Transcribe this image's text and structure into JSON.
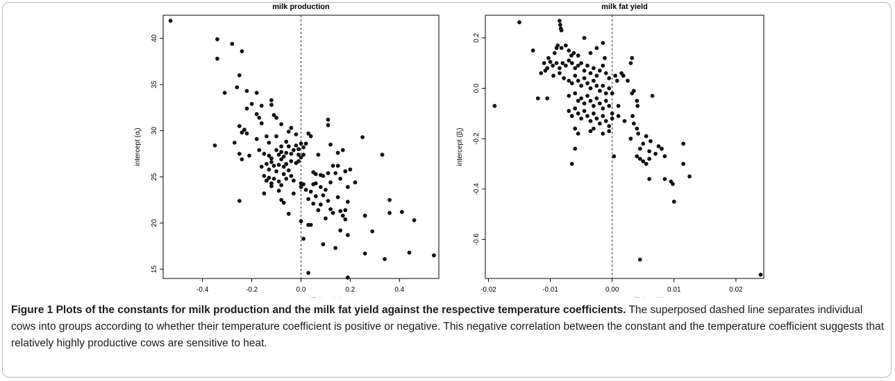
{
  "chart_data": [
    {
      "type": "scatter",
      "title": "milk production",
      "xlabel": "temperature coefficient (a",
      "xlabel_sub": "i",
      "ylabel": "intercept (α",
      "ylabel_sub": "i",
      "xlim": [
        -0.56,
        0.56
      ],
      "ylim": [
        14.0,
        42.5
      ],
      "xticks": [
        "-0.4",
        "-0.2",
        "0.0",
        "0.2",
        "0.4"
      ],
      "xtick_values": [
        -0.4,
        -0.2,
        0.0,
        0.2,
        0.4
      ],
      "yticks": [
        "15",
        "20",
        "25",
        "30",
        "35",
        "40"
      ],
      "ytick_values": [
        15,
        20,
        25,
        30,
        35,
        40
      ],
      "reference_line": {
        "x": 0,
        "style": "dashed"
      },
      "points": [
        [
          -0.53,
          41.9
        ],
        [
          -0.34,
          39.9
        ],
        [
          -0.34,
          37.8
        ],
        [
          -0.28,
          39.4
        ],
        [
          -0.24,
          38.6
        ],
        [
          -0.25,
          36.0
        ],
        [
          -0.26,
          34.7
        ],
        [
          -0.31,
          34.1
        ],
        [
          -0.22,
          34.3
        ],
        [
          -0.2,
          32.9
        ],
        [
          -0.22,
          32.4
        ],
        [
          -0.18,
          34.1
        ],
        [
          -0.16,
          32.7
        ],
        [
          -0.18,
          31.8
        ],
        [
          -0.17,
          31.4
        ],
        [
          -0.16,
          30.8
        ],
        [
          -0.12,
          33.3
        ],
        [
          -0.12,
          32.8
        ],
        [
          -0.11,
          31.7
        ],
        [
          -0.1,
          31.4
        ],
        [
          -0.08,
          30.7
        ],
        [
          -0.05,
          29.9
        ],
        [
          -0.04,
          30.3
        ],
        [
          -0.02,
          29.6
        ],
        [
          0.03,
          29.7
        ],
        [
          -0.25,
          30.5
        ],
        [
          -0.24,
          29.8
        ],
        [
          -0.22,
          29.7
        ],
        [
          -0.23,
          30.1
        ],
        [
          -0.27,
          28.7
        ],
        [
          -0.18,
          29.1
        ],
        [
          -0.14,
          29.4
        ],
        [
          -0.13,
          28.7
        ],
        [
          -0.1,
          29.4
        ],
        [
          -0.08,
          28.3
        ],
        [
          -0.06,
          28.8
        ],
        [
          -0.05,
          28.3
        ],
        [
          -0.02,
          28.4
        ],
        [
          -0.01,
          28.0
        ],
        [
          0.0,
          28.6
        ],
        [
          0.01,
          28.2
        ],
        [
          0.02,
          28.6
        ],
        [
          -0.35,
          28.4
        ],
        [
          -0.25,
          27.5
        ],
        [
          -0.24,
          26.9
        ],
        [
          -0.21,
          27.3
        ],
        [
          -0.17,
          27.9
        ],
        [
          -0.15,
          27.5
        ],
        [
          -0.13,
          27.3
        ],
        [
          -0.12,
          27.0
        ],
        [
          -0.1,
          27.9
        ],
        [
          -0.09,
          27.4
        ],
        [
          -0.08,
          27.7
        ],
        [
          -0.07,
          27.2
        ],
        [
          -0.06,
          27.6
        ],
        [
          -0.04,
          27.5
        ],
        [
          -0.03,
          27.9
        ],
        [
          -0.01,
          27.4
        ],
        [
          0.0,
          27.1
        ],
        [
          0.01,
          27.4
        ],
        [
          -0.16,
          26.1
        ],
        [
          -0.14,
          26.4
        ],
        [
          -0.13,
          25.8
        ],
        [
          -0.12,
          26.6
        ],
        [
          -0.11,
          26.2
        ],
        [
          -0.1,
          25.6
        ],
        [
          -0.09,
          26.3
        ],
        [
          -0.08,
          26.9
        ],
        [
          -0.07,
          26.1
        ],
        [
          -0.06,
          26.4
        ],
        [
          -0.05,
          25.7
        ],
        [
          -0.04,
          26.7
        ],
        [
          -0.02,
          26.5
        ],
        [
          -0.01,
          26.7
        ],
        [
          -0.15,
          25.1
        ],
        [
          -0.14,
          24.6
        ],
        [
          -0.13,
          24.9
        ],
        [
          -0.12,
          24.3
        ],
        [
          -0.11,
          24.8
        ],
        [
          -0.09,
          24.5
        ],
        [
          -0.08,
          24.1
        ],
        [
          -0.07,
          25.3
        ],
        [
          -0.06,
          24.8
        ],
        [
          -0.04,
          25.1
        ],
        [
          -0.03,
          24.6
        ],
        [
          -0.25,
          22.4
        ],
        [
          -0.15,
          23.2
        ],
        [
          -0.12,
          24.0
        ],
        [
          -0.09,
          23.5
        ],
        [
          -0.08,
          22.5
        ],
        [
          -0.07,
          22.2
        ],
        [
          -0.05,
          21.0
        ],
        [
          -0.03,
          23.2
        ],
        [
          0.0,
          23.9
        ],
        [
          0.0,
          24.3
        ],
        [
          0.01,
          24.2
        ],
        [
          0.02,
          23.6
        ],
        [
          0.05,
          25.5
        ],
        [
          0.06,
          25.3
        ],
        [
          0.06,
          24.3
        ],
        [
          0.08,
          25.2
        ],
        [
          0.08,
          23.9
        ],
        [
          0.09,
          25.1
        ],
        [
          0.11,
          25.4
        ],
        [
          0.12,
          24.4
        ],
        [
          0.13,
          26.2
        ],
        [
          0.14,
          25.4
        ],
        [
          0.15,
          26.2
        ],
        [
          0.16,
          24.8
        ],
        [
          0.18,
          25.6
        ],
        [
          0.19,
          23.9
        ],
        [
          0.2,
          25.8
        ],
        [
          0.22,
          24.4
        ],
        [
          0.05,
          24.2
        ],
        [
          0.04,
          23.4
        ],
        [
          0.03,
          22.6
        ],
        [
          0.05,
          22.1
        ],
        [
          0.06,
          22.9
        ],
        [
          0.07,
          21.4
        ],
        [
          0.08,
          22.0
        ],
        [
          0.09,
          23.0
        ],
        [
          0.1,
          23.6
        ],
        [
          0.11,
          22.4
        ],
        [
          0.12,
          21.5
        ],
        [
          0.13,
          21.1
        ],
        [
          0.15,
          22.8
        ],
        [
          0.16,
          21.3
        ],
        [
          0.17,
          20.8
        ],
        [
          0.18,
          20.4
        ],
        [
          0.19,
          22.3
        ],
        [
          0.18,
          21.4
        ],
        [
          0.16,
          19.2
        ],
        [
          0.04,
          29.4
        ],
        [
          0.07,
          27.4
        ],
        [
          0.11,
          31.2
        ],
        [
          0.11,
          30.6
        ],
        [
          0.12,
          28.5
        ],
        [
          0.15,
          27.6
        ],
        [
          0.17,
          27.9
        ],
        [
          0.25,
          29.3
        ],
        [
          0.33,
          27.4
        ],
        [
          0.0,
          20.2
        ],
        [
          0.01,
          18.3
        ],
        [
          0.03,
          19.8
        ],
        [
          0.04,
          19.8
        ],
        [
          0.09,
          17.7
        ],
        [
          0.1,
          20.5
        ],
        [
          0.14,
          17.3
        ],
        [
          0.19,
          18.7
        ],
        [
          0.29,
          19.1
        ],
        [
          0.26,
          20.8
        ],
        [
          0.34,
          16.1
        ],
        [
          0.26,
          16.7
        ],
        [
          0.44,
          16.8
        ],
        [
          0.54,
          16.5
        ],
        [
          0.36,
          22.5
        ],
        [
          0.36,
          21.1
        ],
        [
          0.41,
          21.2
        ],
        [
          0.46,
          20.3
        ],
        [
          0.03,
          14.6
        ],
        [
          0.19,
          14.1
        ]
      ]
    },
    {
      "type": "scatter",
      "title": "milk fat yield",
      "xlabel": "temperature coefficient (b",
      "xlabel_sub": "i",
      "ylabel": "intercept (β",
      "ylabel_sub": "i",
      "xlim": [
        -0.0205,
        0.0245
      ],
      "ylim": [
        -0.755,
        0.29
      ],
      "xticks": [
        "-0.02",
        "-0.01",
        "0.00",
        "0.01",
        "0.02"
      ],
      "xtick_values": [
        -0.02,
        -0.01,
        0.0,
        0.01,
        0.02
      ],
      "yticks": [
        "-0.6",
        "-0.4",
        "-0.2",
        "0.0",
        "0.2"
      ],
      "ytick_values": [
        -0.6,
        -0.4,
        -0.2,
        0.0,
        0.2
      ],
      "reference_line": {
        "x": 0,
        "style": "dashed"
      },
      "points": [
        [
          -0.015,
          0.262
        ],
        [
          -0.0085,
          0.268
        ],
        [
          -0.0084,
          0.252
        ],
        [
          -0.0083,
          0.237
        ],
        [
          -0.0082,
          0.23
        ],
        [
          -0.0128,
          0.15
        ],
        [
          -0.0103,
          0.12
        ],
        [
          -0.0093,
          0.14
        ],
        [
          -0.009,
          0.16
        ],
        [
          -0.0088,
          0.17
        ],
        [
          -0.0082,
          0.16
        ],
        [
          -0.0075,
          0.17
        ],
        [
          -0.007,
          0.15
        ],
        [
          -0.0066,
          0.13
        ],
        [
          -0.0062,
          0.14
        ],
        [
          -0.0055,
          0.13
        ],
        [
          -0.0045,
          0.2
        ],
        [
          -0.0035,
          0.14
        ],
        [
          -0.0025,
          0.16
        ],
        [
          -0.0015,
          0.18
        ],
        [
          -0.0012,
          0.12
        ],
        [
          -0.011,
          0.1
        ],
        [
          -0.0105,
          0.08
        ],
        [
          -0.01,
          0.105
        ],
        [
          -0.0096,
          0.09
        ],
        [
          -0.009,
          0.1
        ],
        [
          -0.0085,
          0.08
        ],
        [
          -0.008,
          0.1
        ],
        [
          -0.0075,
          0.09
        ],
        [
          -0.007,
          0.11
        ],
        [
          -0.0065,
          0.1
        ],
        [
          -0.006,
          0.08
        ],
        [
          -0.0055,
          0.09
        ],
        [
          -0.005,
          0.1
        ],
        [
          -0.0045,
          0.07
        ],
        [
          -0.004,
          0.09
        ],
        [
          -0.0035,
          0.06
        ],
        [
          -0.003,
          0.08
        ],
        [
          -0.0025,
          0.05
        ],
        [
          -0.002,
          0.07
        ],
        [
          -0.0015,
          0.09
        ],
        [
          -0.001,
          0.06
        ],
        [
          -0.0005,
          0.04
        ],
        [
          0.0005,
          0.05
        ],
        [
          0.0015,
          0.06
        ],
        [
          0.003,
          0.1
        ],
        [
          0.0032,
          0.12
        ],
        [
          0.0018,
          0.05
        ],
        [
          -0.0115,
          0.06
        ],
        [
          -0.0108,
          0.07
        ],
        [
          -0.0095,
          0.05
        ],
        [
          -0.0085,
          0.06
        ],
        [
          -0.0078,
          0.04
        ],
        [
          -0.007,
          0.03
        ],
        [
          -0.0065,
          0.02
        ],
        [
          -0.006,
          0.05
        ],
        [
          -0.0055,
          0.03
        ],
        [
          -0.005,
          0.01
        ],
        [
          -0.0045,
          0.04
        ],
        [
          -0.004,
          0.02
        ],
        [
          -0.0035,
          0.0
        ],
        [
          -0.003,
          0.03
        ],
        [
          -0.0025,
          0.01
        ],
        [
          -0.002,
          -0.01
        ],
        [
          -0.0015,
          0.01
        ],
        [
          -0.001,
          -0.02
        ],
        [
          -0.0005,
          0.0
        ],
        [
          0.0,
          -0.02
        ],
        [
          0.0008,
          0.03
        ],
        [
          0.0025,
          0.03
        ],
        [
          -0.019,
          -0.07
        ],
        [
          -0.012,
          -0.04
        ],
        [
          -0.0105,
          -0.04
        ],
        [
          -0.007,
          -0.03
        ],
        [
          -0.006,
          -0.02
        ],
        [
          -0.0055,
          -0.05
        ],
        [
          -0.005,
          -0.04
        ],
        [
          -0.0045,
          -0.06
        ],
        [
          -0.004,
          -0.03
        ],
        [
          -0.0035,
          -0.05
        ],
        [
          -0.003,
          -0.07
        ],
        [
          -0.0025,
          -0.04
        ],
        [
          -0.002,
          -0.06
        ],
        [
          -0.0015,
          -0.08
        ],
        [
          -0.001,
          -0.05
        ],
        [
          -0.0005,
          -0.07
        ],
        [
          0.0,
          -0.1
        ],
        [
          0.001,
          -0.07
        ],
        [
          0.0032,
          -0.02
        ],
        [
          0.0035,
          -0.01
        ],
        [
          0.004,
          -0.05
        ],
        [
          0.0041,
          -0.07
        ],
        [
          -0.007,
          -0.09
        ],
        [
          -0.0065,
          -0.11
        ],
        [
          -0.006,
          -0.08
        ],
        [
          -0.0055,
          -0.1
        ],
        [
          -0.005,
          -0.12
        ],
        [
          -0.0045,
          -0.09
        ],
        [
          -0.004,
          -0.11
        ],
        [
          -0.0035,
          -0.13
        ],
        [
          -0.003,
          -0.1
        ],
        [
          -0.0025,
          -0.12
        ],
        [
          -0.002,
          -0.14
        ],
        [
          -0.0015,
          -0.11
        ],
        [
          -0.001,
          -0.13
        ],
        [
          -0.0005,
          -0.15
        ],
        [
          0.0,
          -0.12
        ],
        [
          0.001,
          -0.11
        ],
        [
          0.002,
          -0.13
        ],
        [
          0.0033,
          -0.11
        ],
        [
          -0.006,
          -0.16
        ],
        [
          -0.0055,
          -0.18
        ],
        [
          -0.0035,
          -0.17
        ],
        [
          -0.003,
          -0.16
        ],
        [
          -0.0015,
          -0.18
        ],
        [
          -0.0005,
          -0.17
        ],
        [
          0.0035,
          -0.14
        ],
        [
          0.004,
          -0.16
        ],
        [
          0.0042,
          -0.18
        ],
        [
          0.003,
          -0.2
        ],
        [
          0.0055,
          -0.19
        ],
        [
          0.0062,
          -0.21
        ],
        [
          0.005,
          -0.22
        ],
        [
          0.0045,
          -0.24
        ],
        [
          0.0075,
          -0.23
        ],
        [
          0.006,
          -0.25
        ],
        [
          0.008,
          -0.24
        ],
        [
          0.007,
          -0.26
        ],
        [
          0.0085,
          -0.27
        ],
        [
          0.0115,
          -0.22
        ],
        [
          0.004,
          -0.27
        ],
        [
          0.0045,
          -0.28
        ],
        [
          0.005,
          -0.29
        ],
        [
          0.0055,
          -0.3
        ],
        [
          0.006,
          -0.28
        ],
        [
          0.0115,
          -0.3
        ],
        [
          0.0125,
          -0.35
        ],
        [
          0.0095,
          -0.37
        ],
        [
          0.0085,
          -0.36
        ],
        [
          0.0098,
          -0.38
        ],
        [
          0.006,
          -0.36
        ],
        [
          -0.0065,
          -0.3
        ],
        [
          0.0003,
          -0.27
        ],
        [
          0.01,
          -0.45
        ],
        [
          0.0065,
          -0.03
        ],
        [
          -0.006,
          -0.24
        ],
        [
          0.0045,
          -0.68
        ],
        [
          0.024,
          -0.74
        ]
      ]
    }
  ],
  "caption": {
    "lead": "Figure 1 Plots of the constants for milk production and the milk fat yield against the respective temperature coefficients.",
    "body": " The superposed dashed line separates individual cows into groups according to whether their temperature coefficient is positive or negative. This negative correlation between the constant and the temperature coefficient suggests that relatively highly productive cows are sensitive to heat."
  }
}
